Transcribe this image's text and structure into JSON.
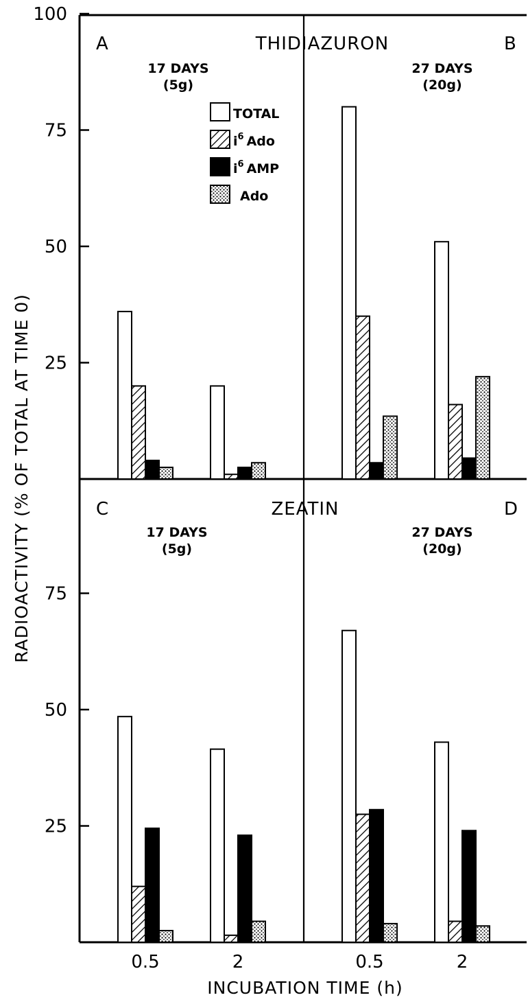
{
  "chart_data": {
    "type": "bar",
    "ylabel": "RADIOACTIVITY (% OF TOTAL AT TIME 0)",
    "xlabel": "INCUBATION TIME (h)",
    "x_categories": [
      "0.5",
      "2"
    ],
    "yticks_top": [
      "100",
      "75",
      "50",
      "25"
    ],
    "yticks_bottom": [
      "75",
      "50",
      "25"
    ],
    "ylim": [
      0,
      100
    ],
    "legend": {
      "placement": "top-center of panel A",
      "entries": [
        {
          "label": "TOTAL",
          "pattern": "open"
        },
        {
          "label_base": "i",
          "label_sup": "6",
          "label_rest": "Ado",
          "pattern": "hatched"
        },
        {
          "label_base": "i",
          "label_sup": "6",
          "label_rest": "AMP",
          "pattern": "solid"
        },
        {
          "label": "Ado",
          "pattern": "stippled"
        }
      ]
    },
    "treatments": [
      {
        "title": "THIDIAZURON",
        "panels": [
          {
            "letter": "A",
            "subtitle_line1": "17 DAYS",
            "subtitle_line2": "(5g)",
            "series": [
              {
                "name": "TOTAL",
                "values": [
                  36,
                  20
                ]
              },
              {
                "name": "i6Ado",
                "values": [
                  20,
                  1
                ]
              },
              {
                "name": "i6AMP",
                "values": [
                  4,
                  2.5
                ]
              },
              {
                "name": "Ado",
                "values": [
                  2.5,
                  3.5
                ]
              }
            ]
          },
          {
            "letter": "B",
            "subtitle_line1": "27 DAYS",
            "subtitle_line2": "(20g)",
            "series": [
              {
                "name": "TOTAL",
                "values": [
                  80,
                  51
                ]
              },
              {
                "name": "i6Ado",
                "values": [
                  35,
                  16
                ]
              },
              {
                "name": "i6AMP",
                "values": [
                  3.5,
                  4.5
                ]
              },
              {
                "name": "Ado",
                "values": [
                  13.5,
                  22
                ]
              }
            ]
          }
        ]
      },
      {
        "title": "ZEATIN",
        "panels": [
          {
            "letter": "C",
            "subtitle_line1": "17 DAYS",
            "subtitle_line2": "(5g)",
            "series": [
              {
                "name": "TOTAL",
                "values": [
                  48.5,
                  41.5
                ]
              },
              {
                "name": "i6Ado",
                "values": [
                  12,
                  1.5
                ]
              },
              {
                "name": "i6AMP",
                "values": [
                  24.5,
                  23
                ]
              },
              {
                "name": "Ado",
                "values": [
                  2.5,
                  4.5
                ]
              }
            ]
          },
          {
            "letter": "D",
            "subtitle_line1": "27 DAYS",
            "subtitle_line2": "(20g)",
            "series": [
              {
                "name": "TOTAL",
                "values": [
                  67,
                  43
                ]
              },
              {
                "name": "i6Ado",
                "values": [
                  27.5,
                  4.5
                ]
              },
              {
                "name": "i6AMP",
                "values": [
                  28.5,
                  24
                ]
              },
              {
                "name": "Ado",
                "values": [
                  4,
                  3.5
                ]
              }
            ]
          }
        ]
      }
    ]
  }
}
